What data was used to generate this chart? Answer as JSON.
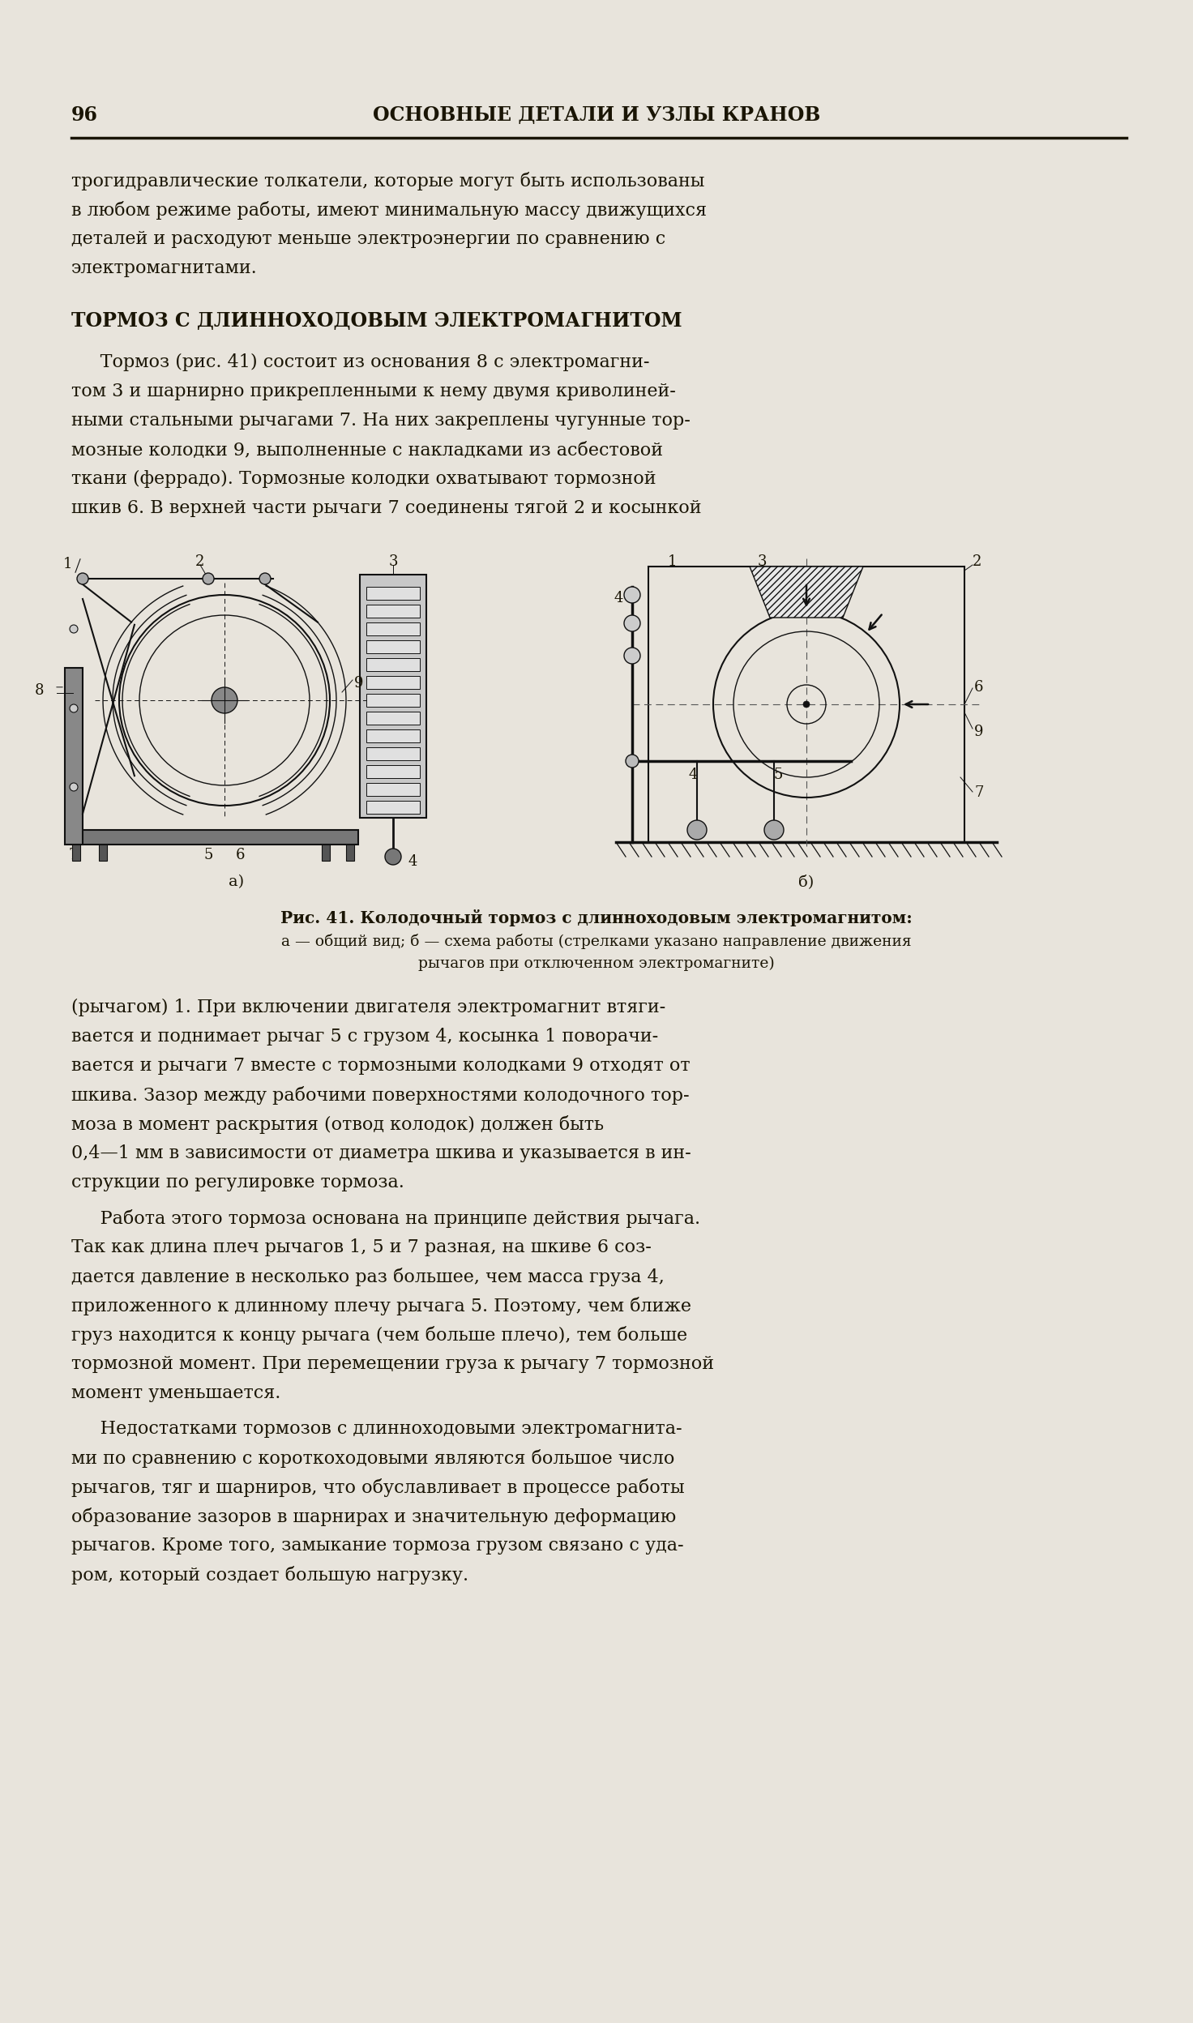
{
  "bg_color": "#e8e4dc",
  "text_color": "#1a1505",
  "page_number": "96",
  "header": "ОСНОВНЫЕ ДЕТАЛИ И УЗЛЫ КРАНОВ",
  "para0_lines": [
    "трогидравлические толкатели, которые могут быть использованы",
    "в любом режиме работы, имеют минимальную массу движущихся",
    "деталей и расходуют меньше электроэнергии по сравнению с",
    "электромагнитами."
  ],
  "section_title": "ТОРМОЗ С ДЛИННОХОДОВЫМ ЭЛЕКТРОМАГНИТОМ",
  "para1_lines": [
    "     Тормоз (рис. 41) состоит из основания 8 с электромагни-",
    "том 3 и шарнирно прикрепленными к нему двумя криволиней-",
    "ными стальными рычагами 7. На них закреплены чугунные тор-",
    "мозные колодки 9, выполненные с накладками из асбестовой",
    "ткани (феррадо). Тормозные колодки охватывают тормозной",
    "шкив 6. В верхней части рычаги 7 соединены тягой 2 и косынкой"
  ],
  "fig_caption_bold": "Рис. 41. Колодочный тормоз с длинноходовым электромагнитом:",
  "fig_caption_line1": "а — общий вид; б — схема работы (стрелками указано направление движения",
  "fig_caption_line2": "рычагов при отключенном электромагните)",
  "para2_lines": [
    "(рычагом) 1. При включении двигателя электромагнит втяги-",
    "вается и поднимает рычаг 5 с грузом 4, косынка 1 поворачи-",
    "вается и рычаги 7 вместе с тормозными колодками 9 отходят от",
    "шкива. Зазор между рабочими поверхностями колодочного тор-",
    "моза в момент раскрытия (отвод колодок) должен быть",
    "0,4—1 мм в зависимости от диаметра шкива и указывается в ин-",
    "струкции по регулировке тормоза."
  ],
  "para3_lines": [
    "     Работа этого тормоза основана на принципе действия рычага.",
    "Так как длина плеч рычагов 1, 5 и 7 разная, на шкиве 6 соз-",
    "дается давление в несколько раз большее, чем масса груза 4,",
    "приложенного к длинному плечу рычага 5. Поэтому, чем ближе",
    "груз находится к концу рычага (чем больше плечо), тем больше",
    "тормозной момент. При перемещении груза к рычагу 7 тормозной",
    "момент уменьшается."
  ],
  "para4_lines": [
    "     Недостатками тормозов с длинноходовыми электромагнита-",
    "ми по сравнению с короткоходовыми являются большое число",
    "рычагов, тяг и шарниров, что обуславливает в процессе работы",
    "образование зазоров в шарнирах и значительную деформацию",
    "рычагов. Кроме того, замыкание тормоза грузом связано с уда-",
    "ром, который создает большую нагрузку."
  ]
}
